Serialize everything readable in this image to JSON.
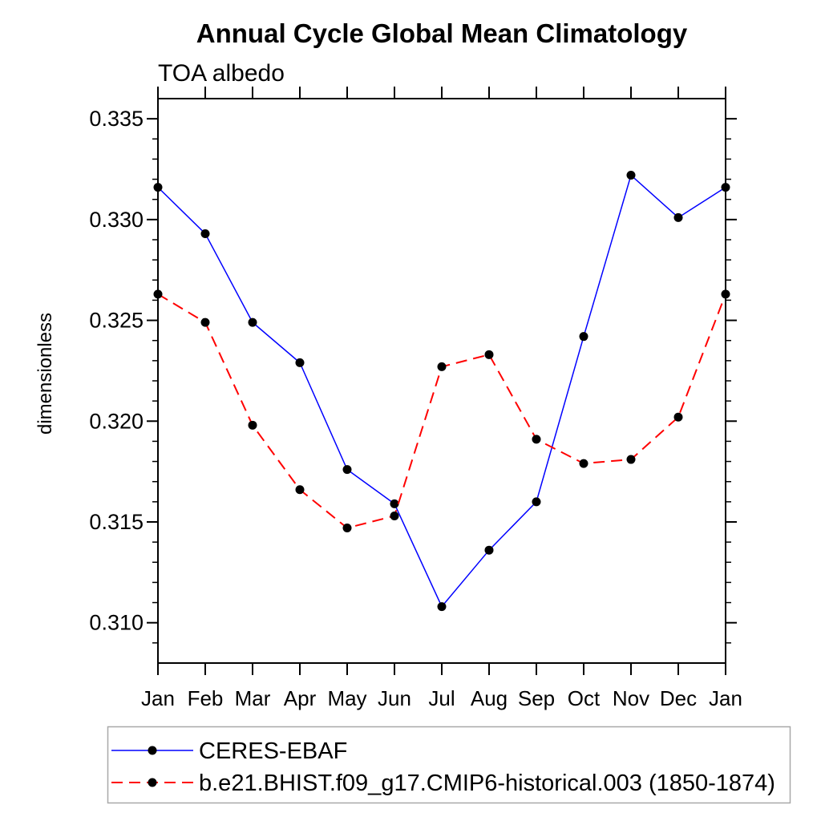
{
  "page": {
    "background": "#ffffff"
  },
  "chart_data": {
    "type": "line",
    "title": "Annual Cycle Global Mean Climatology",
    "subtitle": "TOA albedo",
    "xlabel": "",
    "ylabel": "dimensionless",
    "categories": [
      "Jan",
      "Feb",
      "Mar",
      "Apr",
      "May",
      "Jun",
      "Jul",
      "Aug",
      "Sep",
      "Oct",
      "Nov",
      "Dec",
      "Jan"
    ],
    "ylim": [
      0.308,
      0.336
    ],
    "y_major_tick_step": 0.005,
    "y_minor_tick_step": 0.001,
    "y_tick_labels": [
      "0.310",
      "0.315",
      "0.320",
      "0.325",
      "0.330",
      "0.335"
    ],
    "grid": false,
    "axis_color": "#000000",
    "legend_position": "bottom-left-box",
    "legend_border_color": "#a8a8a8",
    "marker_color": "#000000",
    "series": [
      {
        "name": "CERES-EBAF",
        "color": "#0000ff",
        "line_style": "solid",
        "marker": "filled-circle",
        "values": [
          0.3316,
          0.3293,
          0.3249,
          0.3229,
          0.3176,
          0.3159,
          0.3108,
          0.3136,
          0.316,
          0.3242,
          0.3322,
          0.3301,
          0.3316
        ]
      },
      {
        "name": "b.e21.BHIST.f09_g17.CMIP6-historical.003 (1850-1874)",
        "color": "#ff0000",
        "line_style": "dashed",
        "marker": "filled-circle",
        "values": [
          0.3263,
          0.3249,
          0.3198,
          0.3166,
          0.3147,
          0.3153,
          0.3227,
          0.3233,
          0.3191,
          0.3179,
          0.3181,
          0.3202,
          0.3263
        ]
      }
    ]
  }
}
